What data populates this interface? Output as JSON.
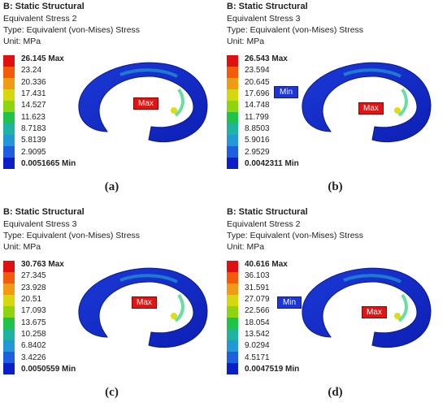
{
  "legend_colors": [
    "#e01010",
    "#f35a0a",
    "#ef9b14",
    "#d5d80f",
    "#8ed40f",
    "#20c24a",
    "#1fb3a2",
    "#2298d7",
    "#1e5ee0",
    "#0b1fc9"
  ],
  "panels": [
    {
      "title": "B: Static Structural",
      "result": "Equivalent Stress 2",
      "type": "Type: Equivalent (von-Mises) Stress",
      "unit": "Unit: MPa",
      "max_value": "26.145 Max",
      "ticks": [
        "23.24",
        "20.336",
        "17.431",
        "14.527",
        "11.623",
        "8.7183",
        "5.8139",
        "2.9095"
      ],
      "min_value": "0.0051665 Min",
      "max_tag": "Max",
      "min_tag": "",
      "caption": "(a)"
    },
    {
      "title": "B: Static Structural",
      "result": "Equivalent Stress 3",
      "type": "Type: Equivalent (von-Mises) Stress",
      "unit": "Unit: MPa",
      "max_value": "26.543 Max",
      "ticks": [
        "23.594",
        "20.645",
        "17.696",
        "14.748",
        "11.799",
        "8.8503",
        "5.9016",
        "2.9529"
      ],
      "min_value": "0.0042311 Min",
      "max_tag": "Max",
      "min_tag": "Min",
      "caption": "(b)"
    },
    {
      "title": "B: Static Structural",
      "result": "Equivalent Stress 3",
      "type": "Type: Equivalent (von-Mises) Stress",
      "unit": "Unit: MPa",
      "max_value": "30.763 Max",
      "ticks": [
        "27.345",
        "23.928",
        "20.51",
        "17.093",
        "13.675",
        "10.258",
        "6.8402",
        "3.4226"
      ],
      "min_value": "0.0050559 Min",
      "max_tag": "Max",
      "min_tag": "",
      "caption": "(c)"
    },
    {
      "title": "B: Static Structural",
      "result": "Equivalent Stress 2",
      "type": "Type: Equivalent (von-Mises) Stress",
      "unit": "Unit: MPa",
      "max_value": "40.616 Max",
      "ticks": [
        "36.103",
        "31.591",
        "27.079",
        "22.566",
        "18.054",
        "13.542",
        "9.0294",
        "4.5171"
      ],
      "min_value": "0.0047519 Min",
      "max_tag": "Max",
      "min_tag": "Min",
      "caption": "(d)"
    }
  ]
}
